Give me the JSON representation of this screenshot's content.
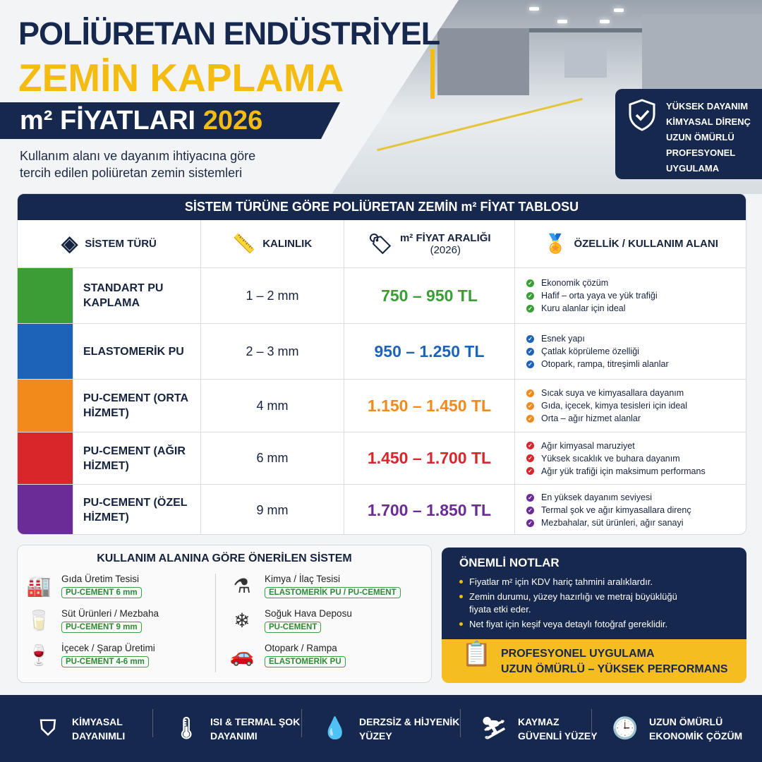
{
  "header": {
    "line1": "POLİÜRETAN ENDÜSTRİYEL",
    "line2": "ZEMİN KAPLAMA",
    "band_prefix": "m² FİYATLARI",
    "band_year": "2026",
    "subtitle": [
      "Kullanım alanı ve dayanım ihtiyacına göre",
      "tercih edilen poliüretan zemin sistemleri"
    ]
  },
  "badge": {
    "icon": "shield-check-icon",
    "lines": [
      "YÜKSEK DAYANIM",
      "KİMYASAL DİRENÇ",
      "UZUN ÖMÜRLÜ",
      "PROFESYONEL",
      "UYGULAMA"
    ]
  },
  "table": {
    "title": "SİSTEM TÜRÜNE GÖRE POLİÜRETAN ZEMİN m² FİYAT TABLOSU",
    "columns": [
      {
        "label": "SİSTEM TÜRÜ",
        "icon": "layers-icon"
      },
      {
        "label": "KALINLIK",
        "icon": "ruler-icon"
      },
      {
        "label": "m² FİYAT ARALIĞI",
        "label2": "(2026)",
        "icon": "price-tag-icon"
      },
      {
        "label": "ÖZELLİK / KULLANIM ALANI",
        "icon": "award-badge-icon"
      }
    ],
    "rows": [
      {
        "name": "STANDART PU KAPLAMA",
        "thickness": "1 – 2 mm",
        "price": "750 – 950 TL",
        "color": "#3a9d35",
        "icon": "layers-icon",
        "features": [
          "Ekonomik çözüm",
          "Hafif – orta yaya ve yük trafiği",
          "Kuru alanlar için ideal"
        ]
      },
      {
        "name": "ELASTOMERİK PU",
        "thickness": "2 – 3 mm",
        "price": "950 – 1.250 TL",
        "color": "#1d64b8",
        "icon": "waves-icon",
        "features": [
          "Esnek yapı",
          "Çatlak köprüleme özelliği",
          "Otopark, rampa, titreşimli alanlar"
        ]
      },
      {
        "name": "PU-CEMENT (ORTA HİZMET)",
        "thickness": "4 mm",
        "price": "1.150 – 1.450 TL",
        "color": "#f28a1b",
        "icon": "textured-layer-icon",
        "features": [
          "Sıcak suya ve kimyasallara dayanım",
          "Gıda, içecek, kimya tesisleri için ideal",
          "Orta – ağır hizmet alanlar"
        ]
      },
      {
        "name": "PU-CEMENT (AĞIR HİZMET)",
        "thickness": "6 mm",
        "price": "1.450 – 1.700 TL",
        "color": "#d9262b",
        "icon": "textured-layer-icon",
        "features": [
          "Ağır kimyasal maruziyet",
          "Yüksek sıcaklık ve buhara dayanım",
          "Ağır yük trafiği için maksimum performans"
        ]
      },
      {
        "name": "PU-CEMENT (ÖZEL HİZMET)",
        "thickness": "9 mm",
        "price": "1.700 – 1.850 TL",
        "color": "#6a2c96",
        "icon": "textured-layer-icon",
        "features": [
          "En yüksek dayanım seviyesi",
          "Termal şok ve ağır kimyasallara direnç",
          "Mezbahalar, süt ürünleri, ağır sanayi"
        ]
      }
    ]
  },
  "recommend": {
    "title": "KULLANIM ALANINA GÖRE ÖNERİLEN SİSTEM",
    "items": [
      {
        "label": "Gıda Üretim Tesisi",
        "tag": "PU-CEMENT 6 mm",
        "icon": "food-plant-icon"
      },
      {
        "label": "Süt Ürünleri / Mezbaha",
        "tag": "PU-CEMENT 9 mm",
        "icon": "milk-jar-icon"
      },
      {
        "label": "İçecek / Şarap Üretimi",
        "tag": "PU-CEMENT 4-6 mm",
        "icon": "bottle-glass-icon"
      },
      {
        "label": "Kimya / İlaç Tesisi",
        "tag": "ELASTOMERİK PU / PU-CEMENT",
        "icon": "flask-icon"
      },
      {
        "label": "Soğuk Hava Deposu",
        "tag": "PU-CEMENT",
        "icon": "snowflake-icon"
      },
      {
        "label": "Otopark / Rampa",
        "tag": "ELASTOMERİK PU",
        "icon": "car-ramp-icon"
      }
    ]
  },
  "notes": {
    "title": "ÖNEMLİ NOTLAR",
    "items": [
      "Fiyatlar m² için KDV hariç tahmini aralıklardır.",
      "Zemin durumu, yüzey hazırlığı ve metraj büyüklüğü fiyata etki eder.",
      "Net fiyat için keşif veya detaylı fotoğraf gereklidir."
    ]
  },
  "pro": {
    "icon": "clipboard-checklist-icon",
    "line1": "PROFESYONEL UYGULAMA",
    "line2": "UZUN ÖMÜRLÜ – YÜKSEK PERFORMANS"
  },
  "footer": [
    {
      "l1": "KİMYASAL",
      "l2": "DAYANIMLI",
      "icon": "shield-check-icon"
    },
    {
      "l1": "ISI & TERMAL ŞOK",
      "l2": "DAYANIMI",
      "icon": "thermometer-icon"
    },
    {
      "l1": "DERZSİZ & HİJYENİK",
      "l2": "YÜZEY",
      "icon": "droplet-icon"
    },
    {
      "l1": "KAYMAZ",
      "l2": "GÜVENLİ YÜZEY",
      "icon": "slip-warning-icon"
    },
    {
      "l1": "UZUN ÖMÜRLÜ",
      "l2": "EKONOMİK ÇÖZÜM",
      "icon": "clock-icon"
    }
  ],
  "colors": {
    "navy": "#16284d",
    "yellow": "#f4bb12"
  }
}
